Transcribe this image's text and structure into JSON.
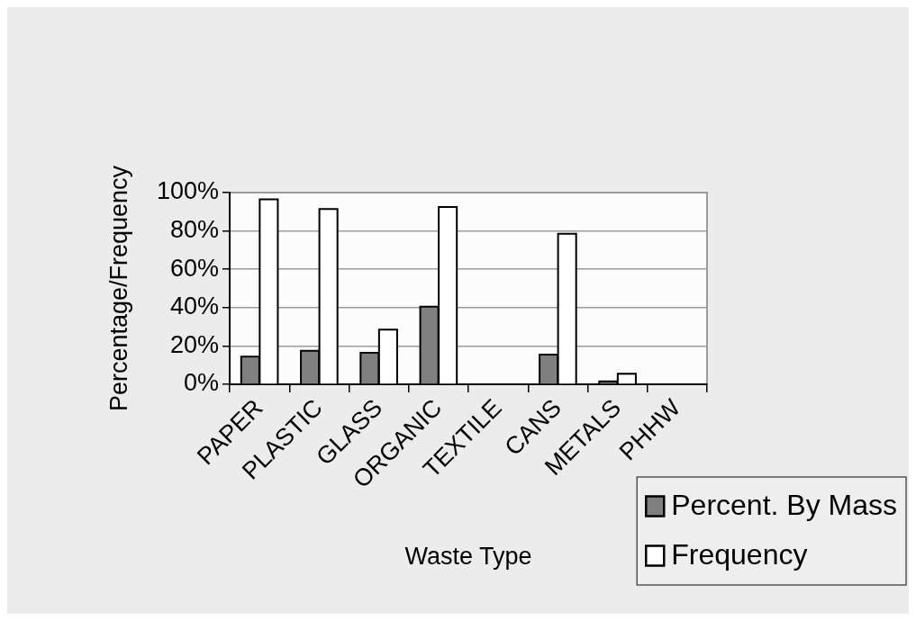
{
  "chart_data": {
    "type": "bar",
    "xlabel": "Waste Type",
    "ylabel": "Percentage/Frequency",
    "categories": [
      "PAPER",
      "PLASTIC",
      "GLASS",
      "ORGANIC",
      "TEXTILE",
      "CANS",
      "METALS",
      "PHHW"
    ],
    "series": [
      {
        "name": "Percent. By Mass",
        "color": "#808080",
        "values": [
          14,
          17,
          16,
          40,
          null,
          15,
          1,
          null
        ]
      },
      {
        "name": "Frequency",
        "color": "#ffffff",
        "values": [
          96,
          91,
          28,
          92,
          null,
          78,
          5,
          null
        ]
      }
    ],
    "ylim": [
      0,
      100
    ],
    "yticks": [
      {
        "value": 0,
        "label": "0%"
      },
      {
        "value": 20,
        "label": "20%"
      },
      {
        "value": 40,
        "label": "40%"
      },
      {
        "value": 60,
        "label": "60%"
      },
      {
        "value": 80,
        "label": "80%"
      },
      {
        "value": 100,
        "label": "100%"
      }
    ],
    "grid": "y",
    "legend": "bottom right"
  }
}
